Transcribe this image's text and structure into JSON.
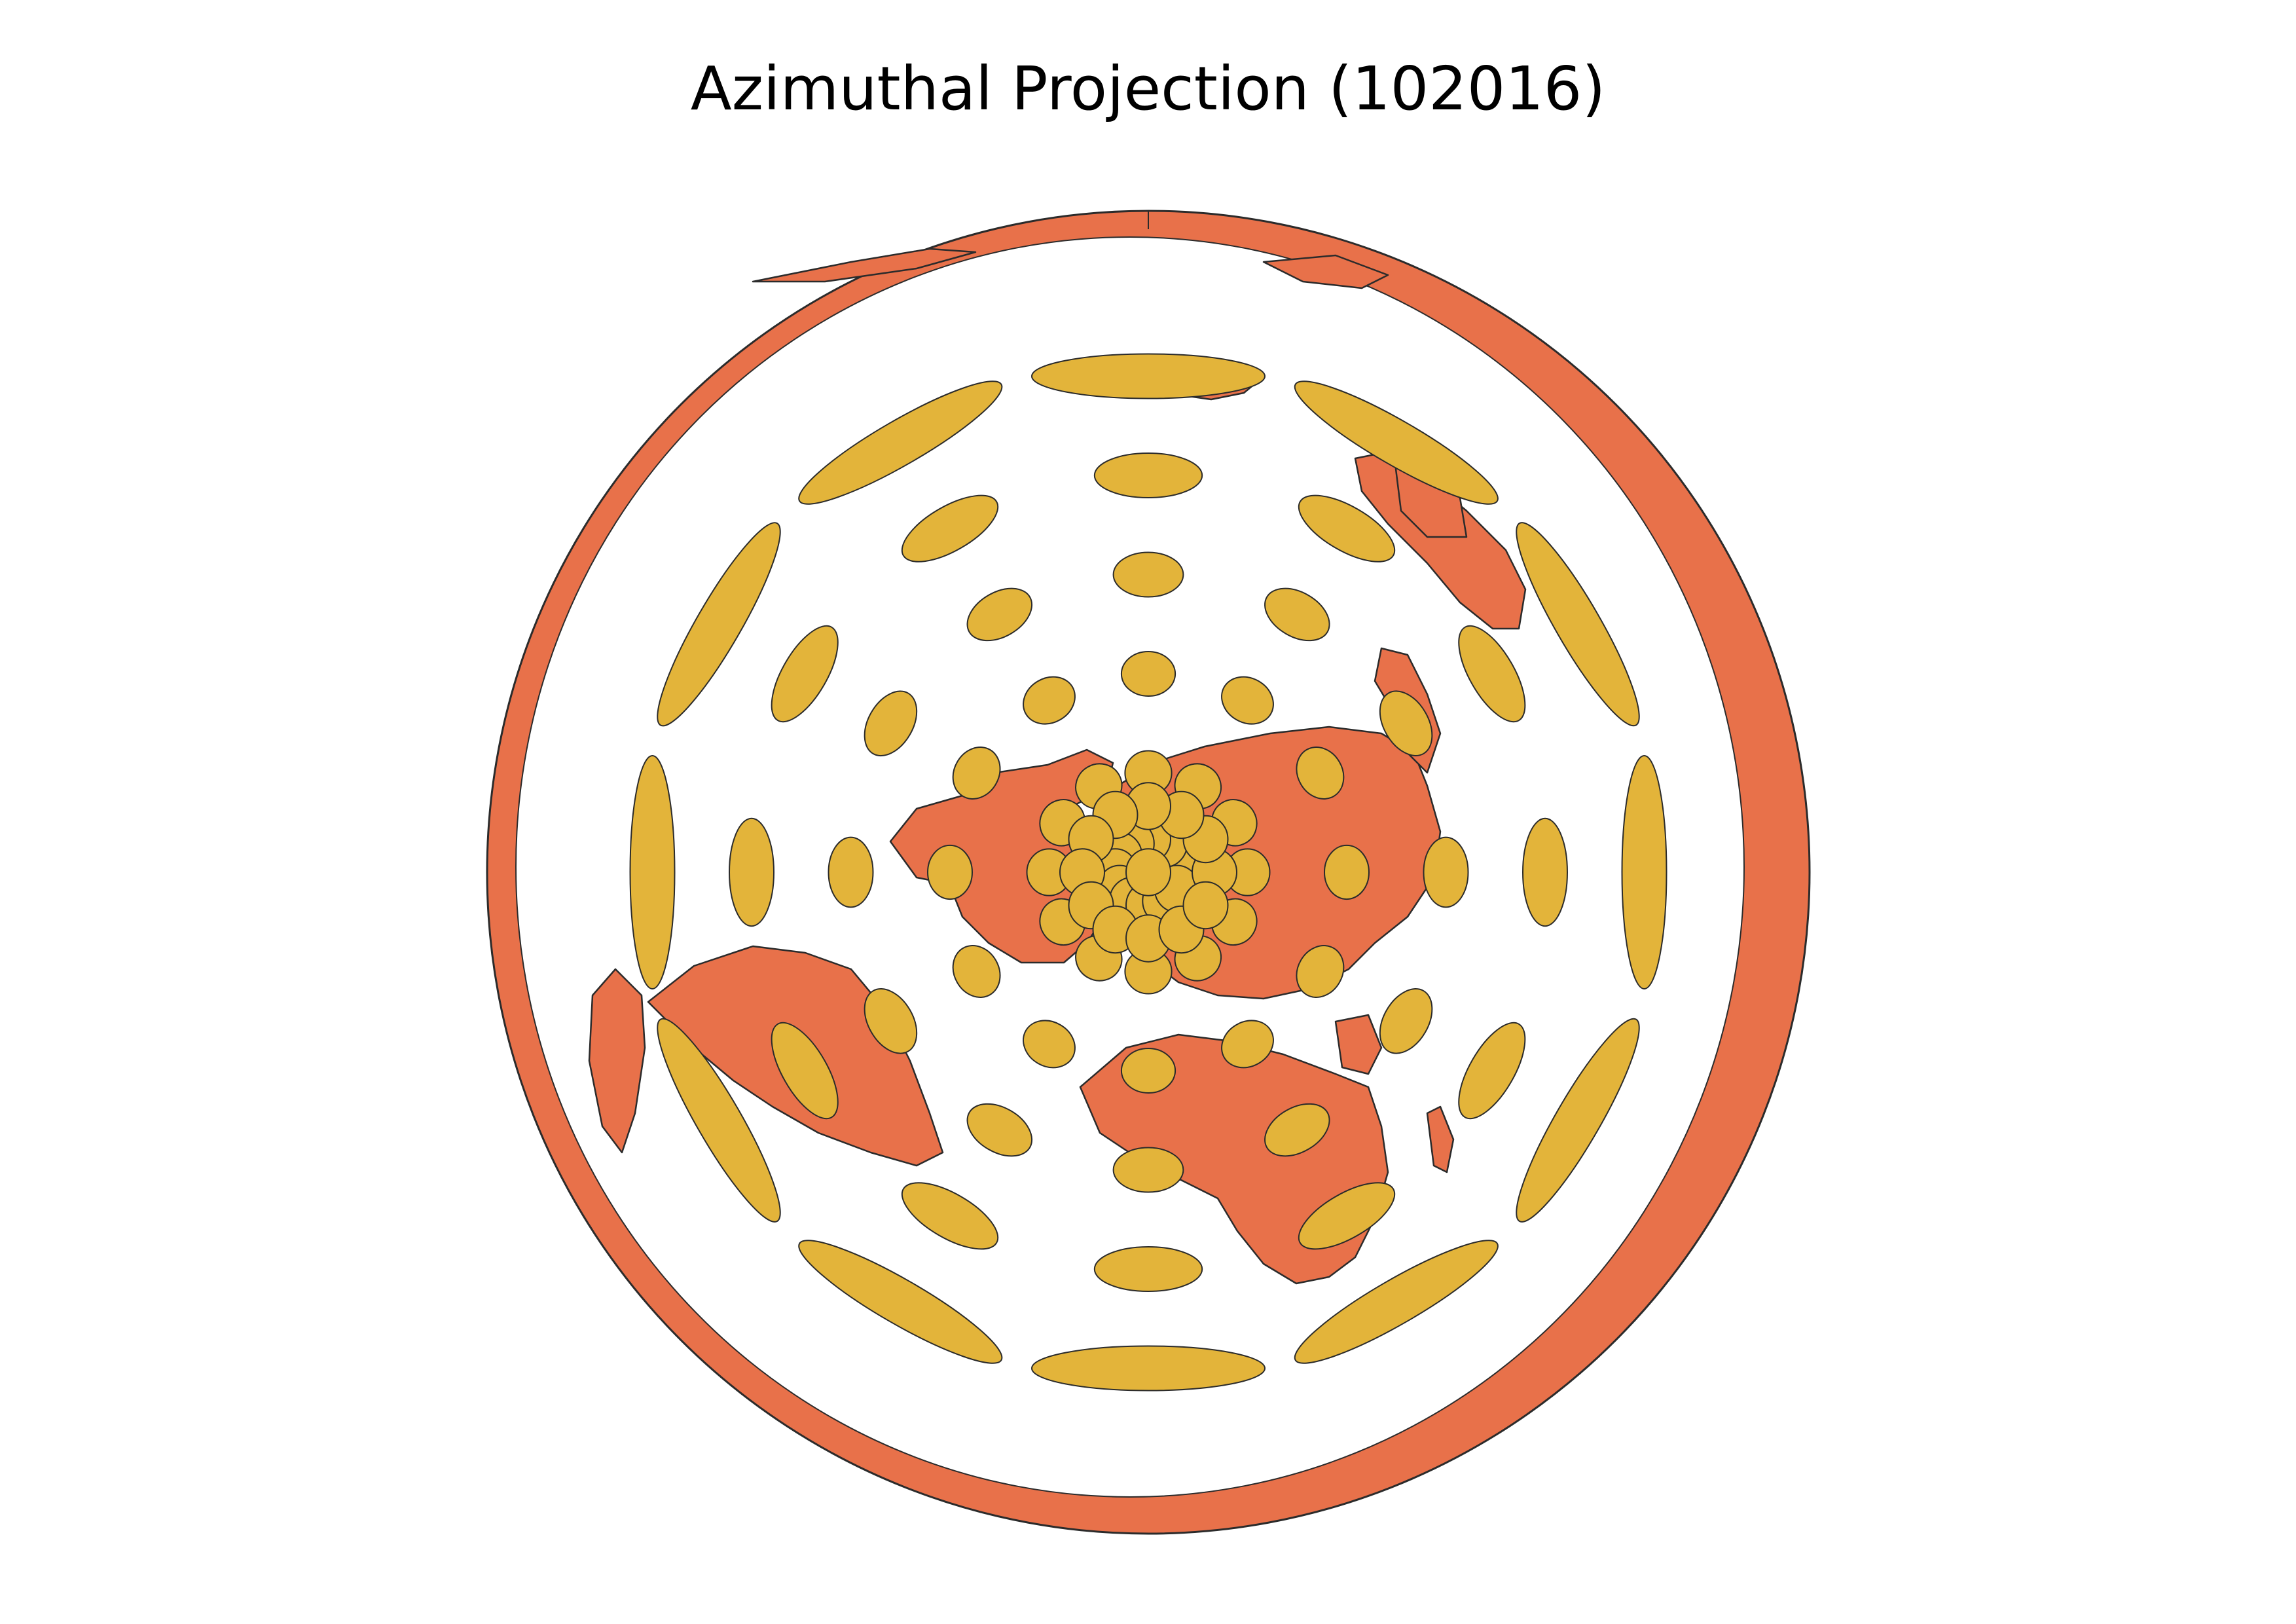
{
  "title": "Azimuthal Projection (102016)",
  "projection": {
    "type": "azimuthal equidistant",
    "code": "102016",
    "center": "North Pole"
  },
  "colors": {
    "land": "#e8714a",
    "indicatrix": "#e3b43a",
    "outline": "#2b2b2b",
    "ocean": "#ffffff"
  },
  "indicatrix_grid": {
    "latitudes": [
      60,
      30,
      0,
      -30,
      -60,
      -90
    ],
    "longitudes": [
      -180,
      -150,
      -120,
      -90,
      -60,
      -30,
      0,
      30,
      60,
      90,
      120,
      150
    ]
  }
}
